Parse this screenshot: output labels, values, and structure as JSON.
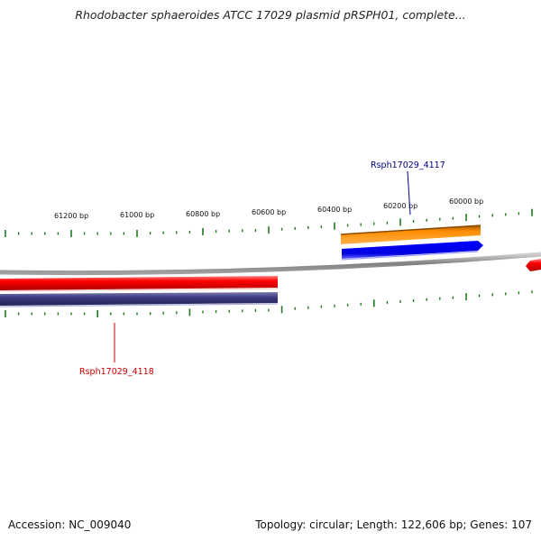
{
  "title": "Rhodobacter sphaeroides ATCC 17029 plasmid pRSPH01, complete...",
  "footer": {
    "accession_label": "Accession:",
    "accession": "NC_009040",
    "topology_label": "Topology:",
    "topology": "circular",
    "length_label": "Length:",
    "length": "122,606 bp",
    "genes_label": "Genes:",
    "genes": "107"
  },
  "scale_ticks": [
    "61200 bp",
    "61000 bp",
    "60800 bp",
    "60600 bp",
    "60400 bp",
    "60200 bp",
    "60000 bp"
  ],
  "genes": [
    {
      "name": "Rsph17029_4117",
      "strand": "forward",
      "color": "#00008b"
    },
    {
      "name": "Rsph17029_4118",
      "strand": "reverse",
      "color": "#cc0000"
    }
  ],
  "colors": {
    "backbone": "#8c8c8c",
    "tick": "#1e7a1e",
    "red_gene": "#ff0000",
    "orange_gene": "#ff8c00",
    "blue_gene": "#0000ff",
    "navy_gene": "#3a3a7e"
  }
}
